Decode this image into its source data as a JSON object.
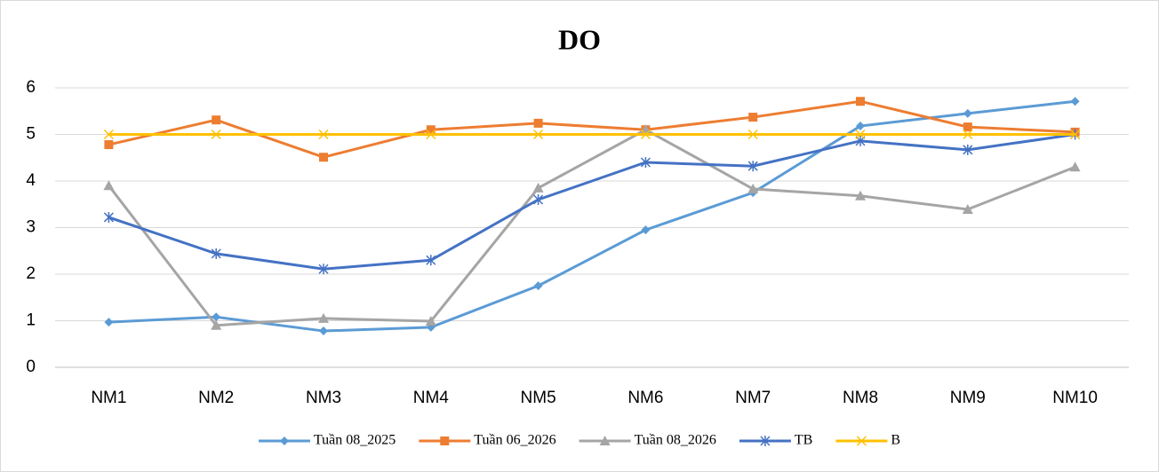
{
  "chart_data": {
    "type": "line",
    "title": "DO",
    "categories": [
      "NM1",
      "NM2",
      "NM3",
      "NM4",
      "NM5",
      "NM6",
      "NM7",
      "NM8",
      "NM9",
      "NM10"
    ],
    "series": [
      {
        "name": "Tuần 08_2025",
        "color": "#5b9bd5",
        "marker": "diamond",
        "values": [
          0.97,
          1.08,
          0.78,
          0.86,
          1.75,
          2.95,
          3.75,
          5.18,
          5.45,
          5.71
        ]
      },
      {
        "name": "Tuần 06_2026",
        "color": "#ed7d31",
        "marker": "square",
        "values": [
          4.78,
          5.31,
          4.51,
          5.1,
          5.24,
          5.1,
          5.37,
          5.71,
          5.16,
          5.05
        ]
      },
      {
        "name": "Tuần 08_2026",
        "color": "#a5a5a5",
        "marker": "triangle",
        "values": [
          3.9,
          0.9,
          1.05,
          0.99,
          3.85,
          5.1,
          3.83,
          3.68,
          3.39,
          4.3
        ]
      },
      {
        "name": "TB",
        "color": "#4472c4",
        "marker": "star",
        "values": [
          3.22,
          2.44,
          2.11,
          2.3,
          3.6,
          4.4,
          4.32,
          4.86,
          4.67,
          5.0
        ]
      },
      {
        "name": "B",
        "color": "#ffc000",
        "marker": "x",
        "values": [
          5,
          5,
          5,
          5,
          5,
          5,
          5,
          5,
          5,
          5
        ]
      }
    ],
    "ylim": [
      0,
      6
    ],
    "yticks": [
      0,
      1,
      2,
      3,
      4,
      5,
      6
    ],
    "grid": true,
    "legend": "bottom"
  }
}
